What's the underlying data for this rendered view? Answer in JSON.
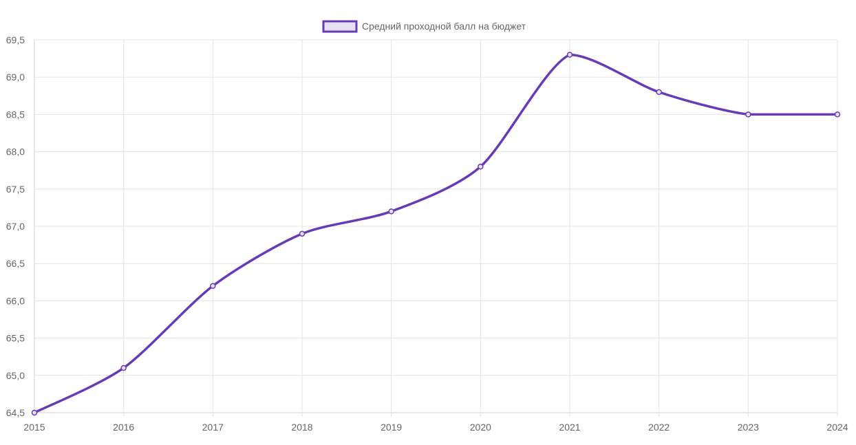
{
  "chart_data": {
    "type": "line",
    "x": [
      "2015",
      "2016",
      "2017",
      "2018",
      "2019",
      "2020",
      "2021",
      "2022",
      "2023",
      "2024"
    ],
    "series": [
      {
        "name": "Средний проходной балл на бюджет",
        "values": [
          64.5,
          65.1,
          66.2,
          66.9,
          67.2,
          67.8,
          69.3,
          68.8,
          68.5,
          68.5
        ],
        "color": "#673ab7",
        "fill_color": "#e6e0f3"
      }
    ],
    "yticks": [
      "64,5",
      "65,0",
      "65,5",
      "66,0",
      "66,5",
      "67,0",
      "67,5",
      "68,0",
      "68,5",
      "69,0",
      "69,5"
    ],
    "ylim": [
      64.5,
      69.5
    ],
    "legend_position": "top-center",
    "grid": true,
    "title": "",
    "xlabel": "",
    "ylabel": ""
  }
}
